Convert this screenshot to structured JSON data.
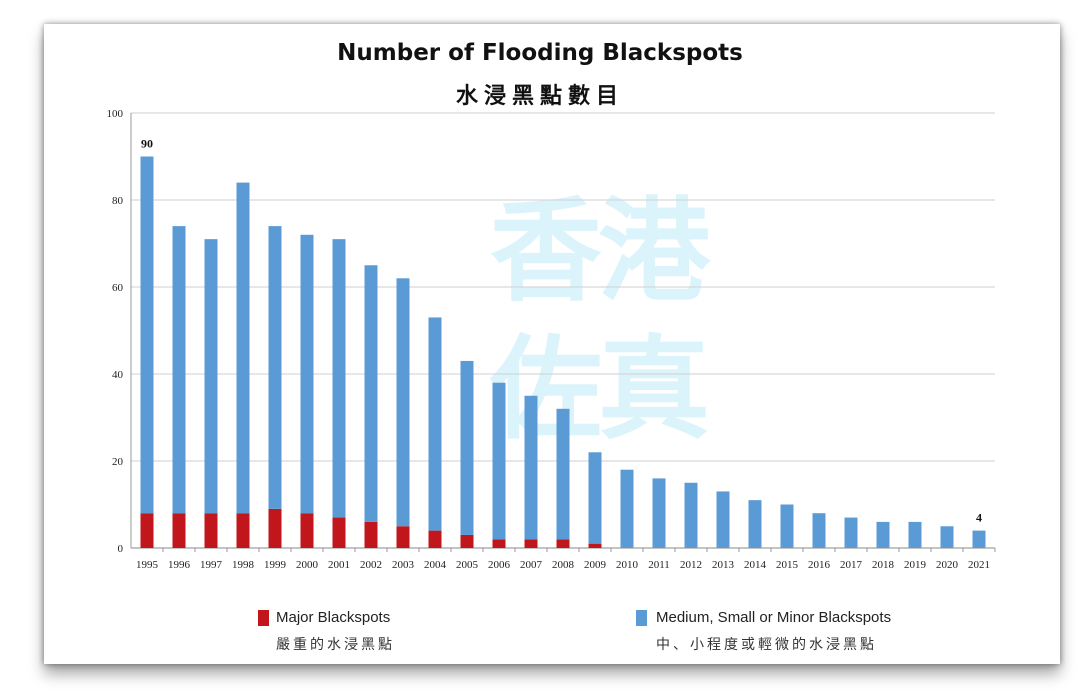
{
  "chart_data": {
    "type": "bar",
    "stacked": true,
    "title": "Number of Flooding Blackspots",
    "subtitle": "水浸黑點數目",
    "xlabel": "",
    "ylabel": "",
    "ylim": [
      0,
      100
    ],
    "yticks": [
      0,
      20,
      40,
      60,
      80,
      100
    ],
    "grid": true,
    "legend_position": "bottom",
    "categories": [
      "1995",
      "1996",
      "1997",
      "1998",
      "1999",
      "2000",
      "2001",
      "2002",
      "2003",
      "2004",
      "2005",
      "2006",
      "2007",
      "2008",
      "2009",
      "2010",
      "2011",
      "2012",
      "2013",
      "2014",
      "2015",
      "2016",
      "2017",
      "2018",
      "2019",
      "2020",
      "2021"
    ],
    "series": [
      {
        "name": "Major Blackspots",
        "name_zh": "嚴重的水浸黑點",
        "color": "#c0161c",
        "values": [
          8,
          8,
          8,
          8,
          9,
          8,
          7,
          6,
          5,
          4,
          3,
          2,
          2,
          2,
          1,
          0,
          0,
          0,
          0,
          0,
          0,
          0,
          0,
          0,
          0,
          0,
          0
        ]
      },
      {
        "name": "Medium, Small or Minor Blackspots",
        "name_zh": "中、小程度或輕微的水浸黑點",
        "color": "#5b9bd5",
        "values": [
          82,
          66,
          63,
          76,
          65,
          64,
          64,
          59,
          57,
          49,
          40,
          36,
          33,
          30,
          21,
          18,
          16,
          15,
          13,
          11,
          10,
          8,
          7,
          6,
          6,
          5,
          4
        ]
      }
    ],
    "annotations": [
      {
        "category": "1995",
        "text": "90"
      },
      {
        "category": "2021",
        "text": "4"
      }
    ]
  },
  "watermark": {
    "text_line1": "香港",
    "text_line2": "佐真"
  }
}
